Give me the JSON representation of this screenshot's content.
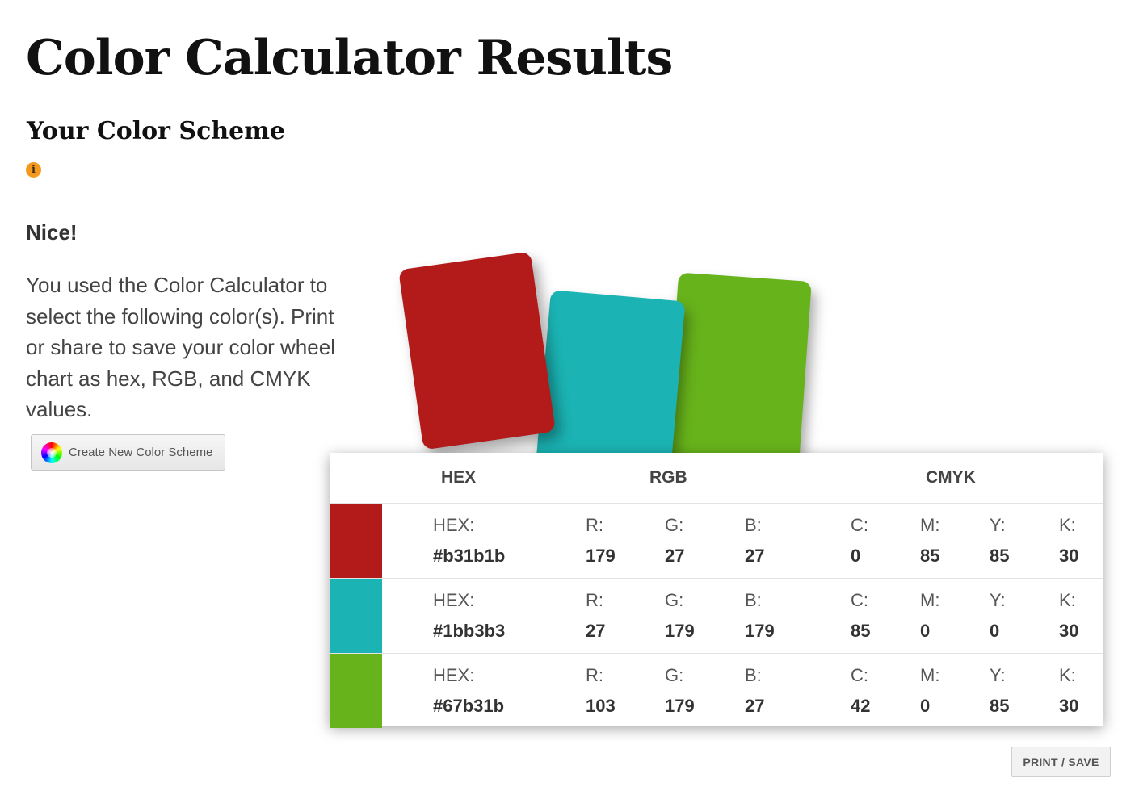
{
  "page": {
    "title": "Color Calculator Results",
    "section_title": "Your Color Scheme",
    "info_icon": "info-icon",
    "nice_heading": "Nice!",
    "intro_text": "You used the Color Calculator to select the following color(s). Print or share to save your color wheel chart as hex, RGB, and CMYK values."
  },
  "create_button": {
    "icon": "color-wheel-icon",
    "label": "Create New Color Scheme"
  },
  "table": {
    "headers": {
      "hex": "HEX",
      "rgb": "RGB",
      "cmyk": "CMYK"
    },
    "labels": {
      "hex": "HEX:",
      "r": "R:",
      "g": "G:",
      "b": "B:",
      "c": "C:",
      "m": "M:",
      "y": "Y:",
      "k": "K:"
    },
    "colors": [
      {
        "hex": "#b31b1b",
        "r": "179",
        "g": "27",
        "b": "27",
        "c": "0",
        "m": "85",
        "y": "85",
        "k": "30"
      },
      {
        "hex": "#1bb3b3",
        "r": "27",
        "g": "179",
        "b": "179",
        "c": "85",
        "m": "0",
        "y": "0",
        "k": "30"
      },
      {
        "hex": "#67b31b",
        "r": "103",
        "g": "179",
        "b": "27",
        "c": "42",
        "m": "0",
        "y": "85",
        "k": "30"
      }
    ]
  },
  "print_button": {
    "label": "PRINT / SAVE"
  }
}
